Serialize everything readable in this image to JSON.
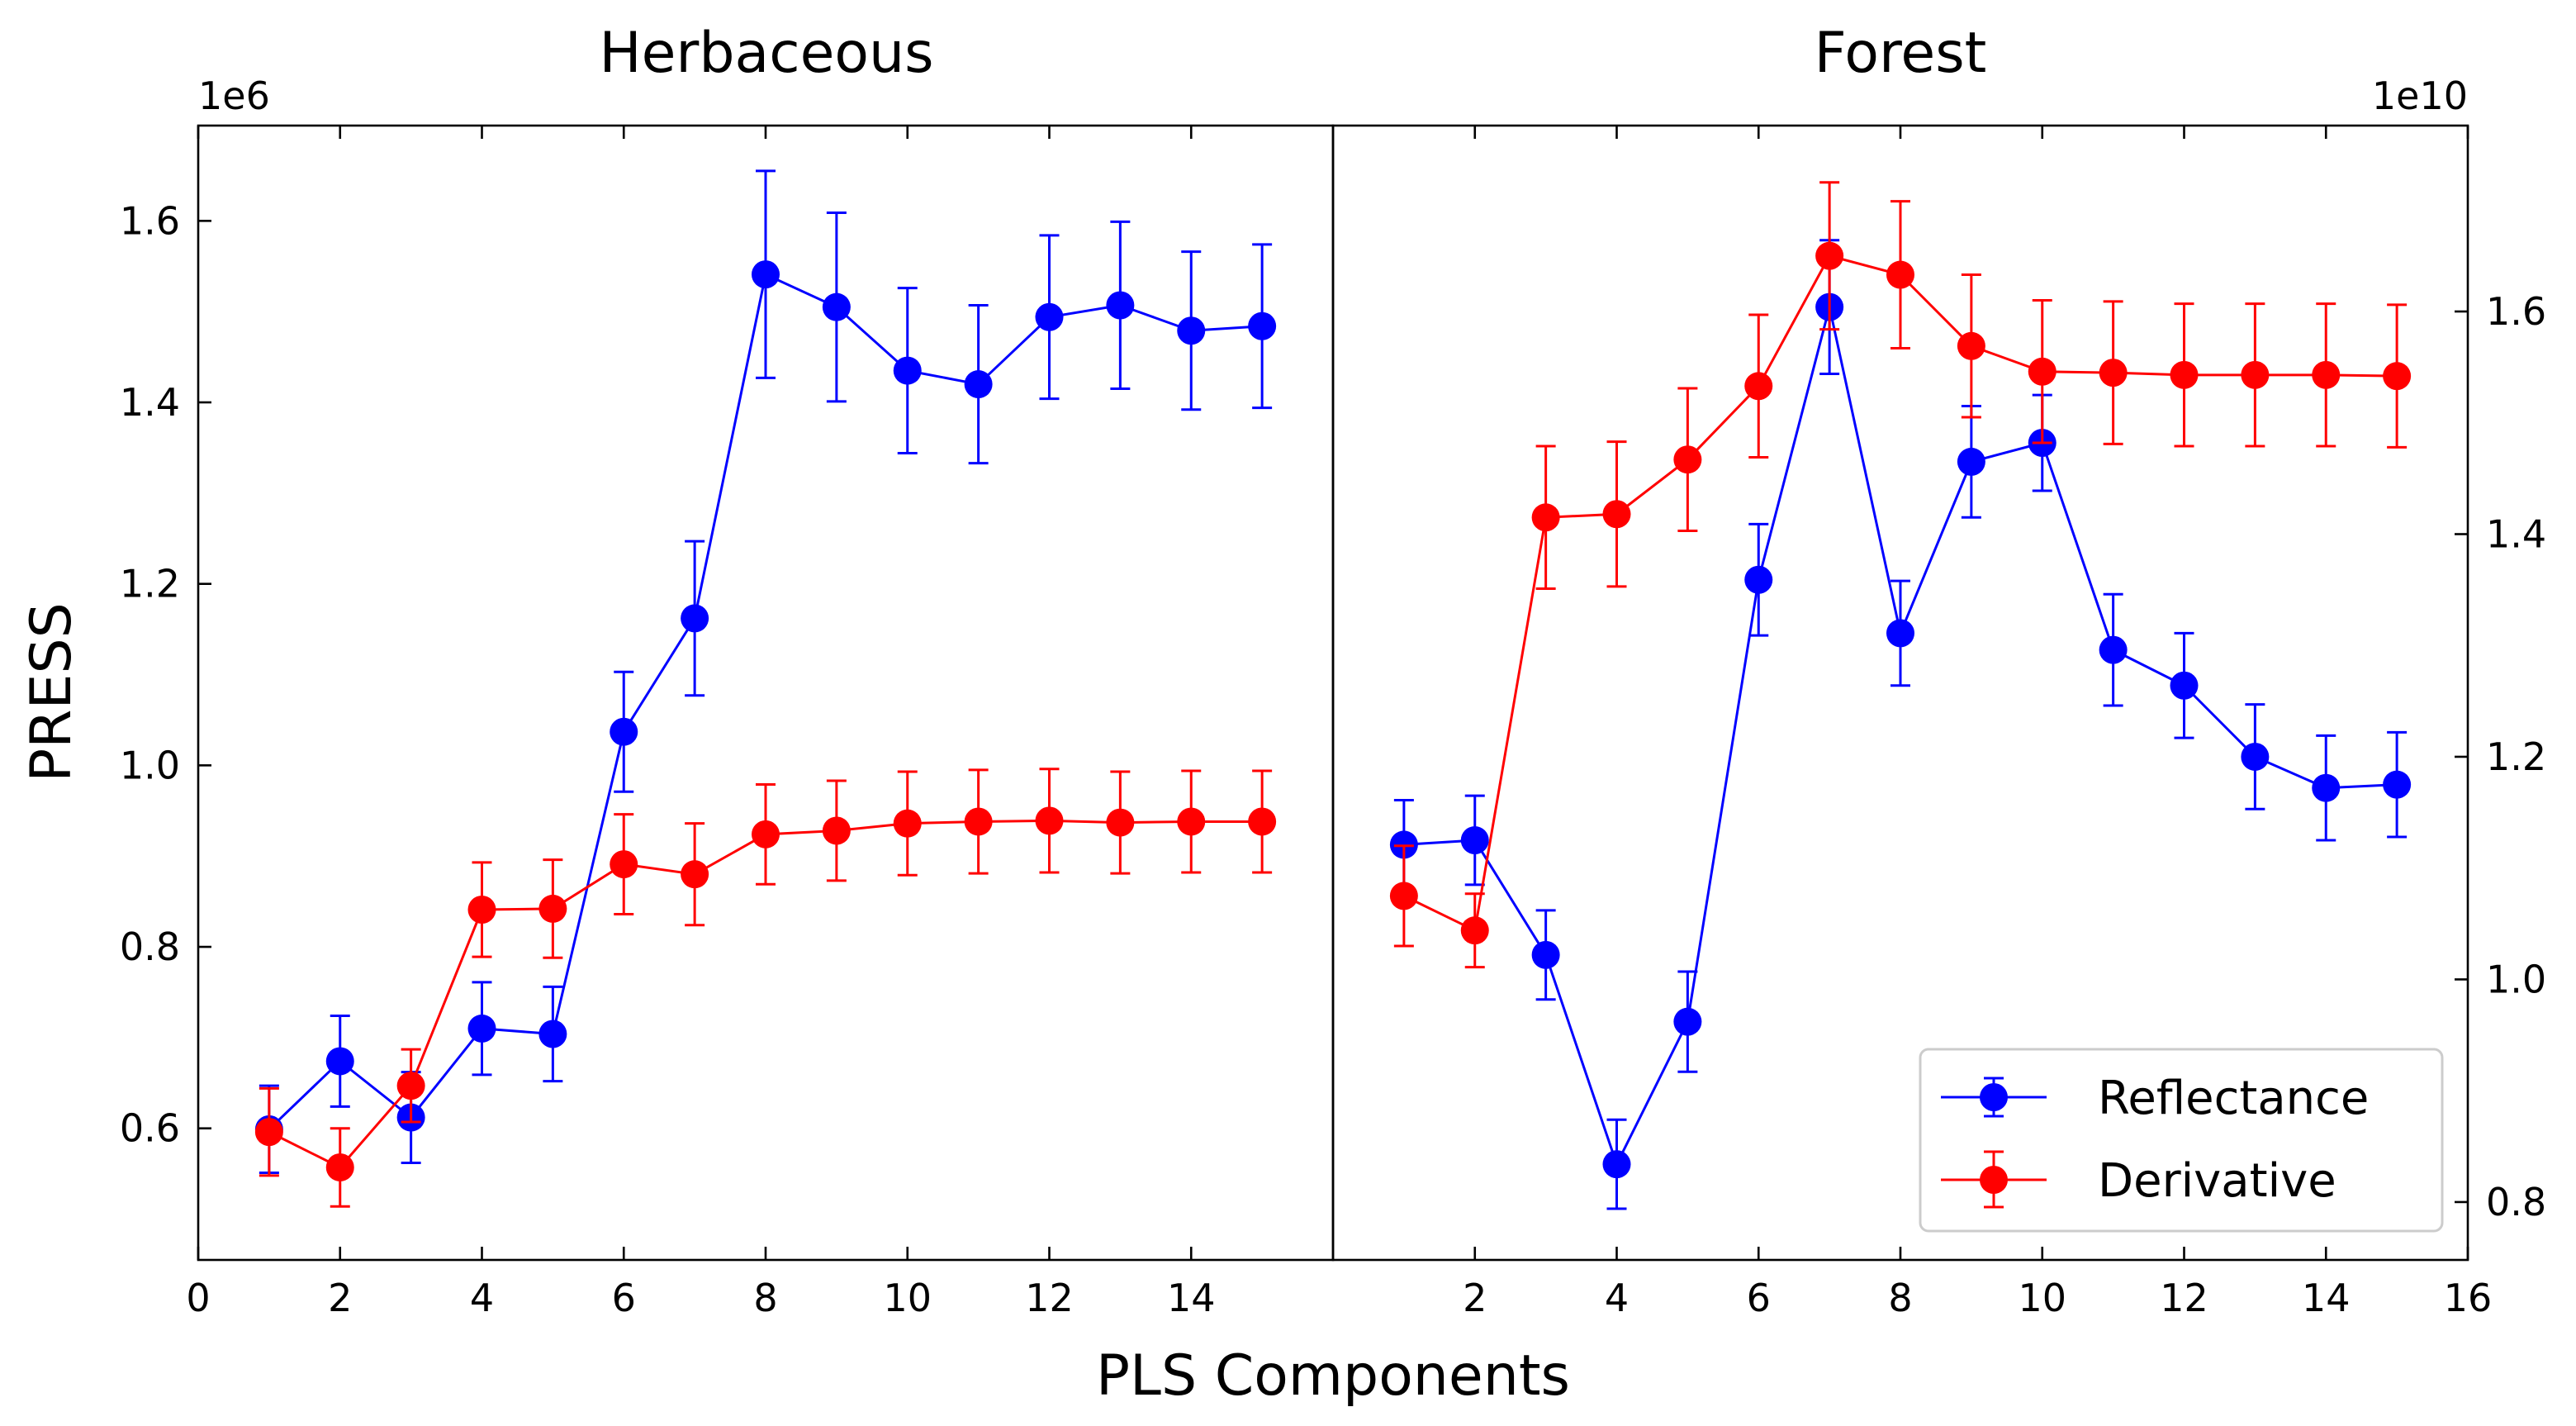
{
  "chart_data": [
    {
      "type": "line",
      "title": "Herbaceous",
      "xlabel": "PLS Components",
      "ylabel": "PRESS",
      "y_scale_label": "1e6",
      "xlim": [
        0,
        16
      ],
      "ylim": [
        0.455,
        1.705
      ],
      "x_ticks": [
        0,
        2,
        4,
        6,
        8,
        10,
        12,
        14
      ],
      "y_ticks": [
        0.6,
        0.8,
        1.0,
        1.2,
        1.4,
        1.6
      ],
      "y_tick_labels": [
        "0.6",
        "0.8",
        "1.0",
        "1.2",
        "1.4",
        "1.6"
      ],
      "x": [
        1,
        2,
        3,
        4,
        5,
        6,
        7,
        8,
        9,
        10,
        11,
        12,
        13,
        14,
        15
      ],
      "series": [
        {
          "name": "Reflectance",
          "color": "#0000ff",
          "values": [
            0.599,
            0.674,
            0.612,
            0.71,
            0.704,
            1.037,
            1.162,
            1.541,
            1.505,
            1.435,
            1.42,
            1.494,
            1.507,
            1.479,
            1.484
          ],
          "errors": [
            0.048,
            0.05,
            0.05,
            0.051,
            0.052,
            0.066,
            0.085,
            0.114,
            0.104,
            0.091,
            0.087,
            0.09,
            0.092,
            0.087,
            0.09
          ]
        },
        {
          "name": "Derivative",
          "color": "#ff0000",
          "values": [
            0.596,
            0.557,
            0.647,
            0.841,
            0.842,
            0.891,
            0.88,
            0.924,
            0.928,
            0.936,
            0.938,
            0.939,
            0.937,
            0.938,
            0.938
          ],
          "errors": [
            0.048,
            0.043,
            0.04,
            0.052,
            0.054,
            0.055,
            0.056,
            0.055,
            0.055,
            0.057,
            0.057,
            0.057,
            0.056,
            0.056,
            0.056
          ]
        }
      ]
    },
    {
      "type": "line",
      "title": "Forest",
      "xlabel": "PLS Components",
      "ylabel": "",
      "y_scale_label": "1e10",
      "xlim": [
        0,
        16
      ],
      "ylim": [
        0.748,
        1.767
      ],
      "x_ticks": [
        2,
        4,
        6,
        8,
        10,
        12,
        14,
        16
      ],
      "y_ticks": [
        0.8,
        1.0,
        1.2,
        1.4,
        1.6
      ],
      "y_tick_labels": [
        "0.8",
        "1.0",
        "1.2",
        "1.4",
        "1.6"
      ],
      "x": [
        1,
        2,
        3,
        4,
        5,
        6,
        7,
        8,
        9,
        10,
        11,
        12,
        13,
        14,
        15
      ],
      "series": [
        {
          "name": "Reflectance",
          "color": "#0000ff",
          "values": [
            1.121,
            1.125,
            1.022,
            0.834,
            0.962,
            1.359,
            1.604,
            1.311,
            1.465,
            1.482,
            1.296,
            1.264,
            1.2,
            1.172,
            1.175
          ],
          "errors": [
            0.04,
            0.04,
            0.04,
            0.04,
            0.045,
            0.05,
            0.06,
            0.047,
            0.05,
            0.043,
            0.05,
            0.047,
            0.047,
            0.047,
            0.047
          ]
        },
        {
          "name": "Derivative",
          "color": "#ff0000",
          "values": [
            1.075,
            1.044,
            1.415,
            1.418,
            1.467,
            1.533,
            1.65,
            1.633,
            1.569,
            1.546,
            1.545,
            1.543,
            1.543,
            1.543,
            1.542
          ],
          "errors": [
            0.045,
            0.033,
            0.064,
            0.065,
            0.064,
            0.064,
            0.066,
            0.066,
            0.064,
            0.064,
            0.064,
            0.064,
            0.064,
            0.064,
            0.064
          ]
        }
      ]
    }
  ],
  "legend": {
    "position": "lower-right",
    "entries": [
      {
        "label": "Reflectance",
        "color": "#0000ff"
      },
      {
        "label": "Derivative",
        "color": "#ff0000"
      }
    ]
  }
}
